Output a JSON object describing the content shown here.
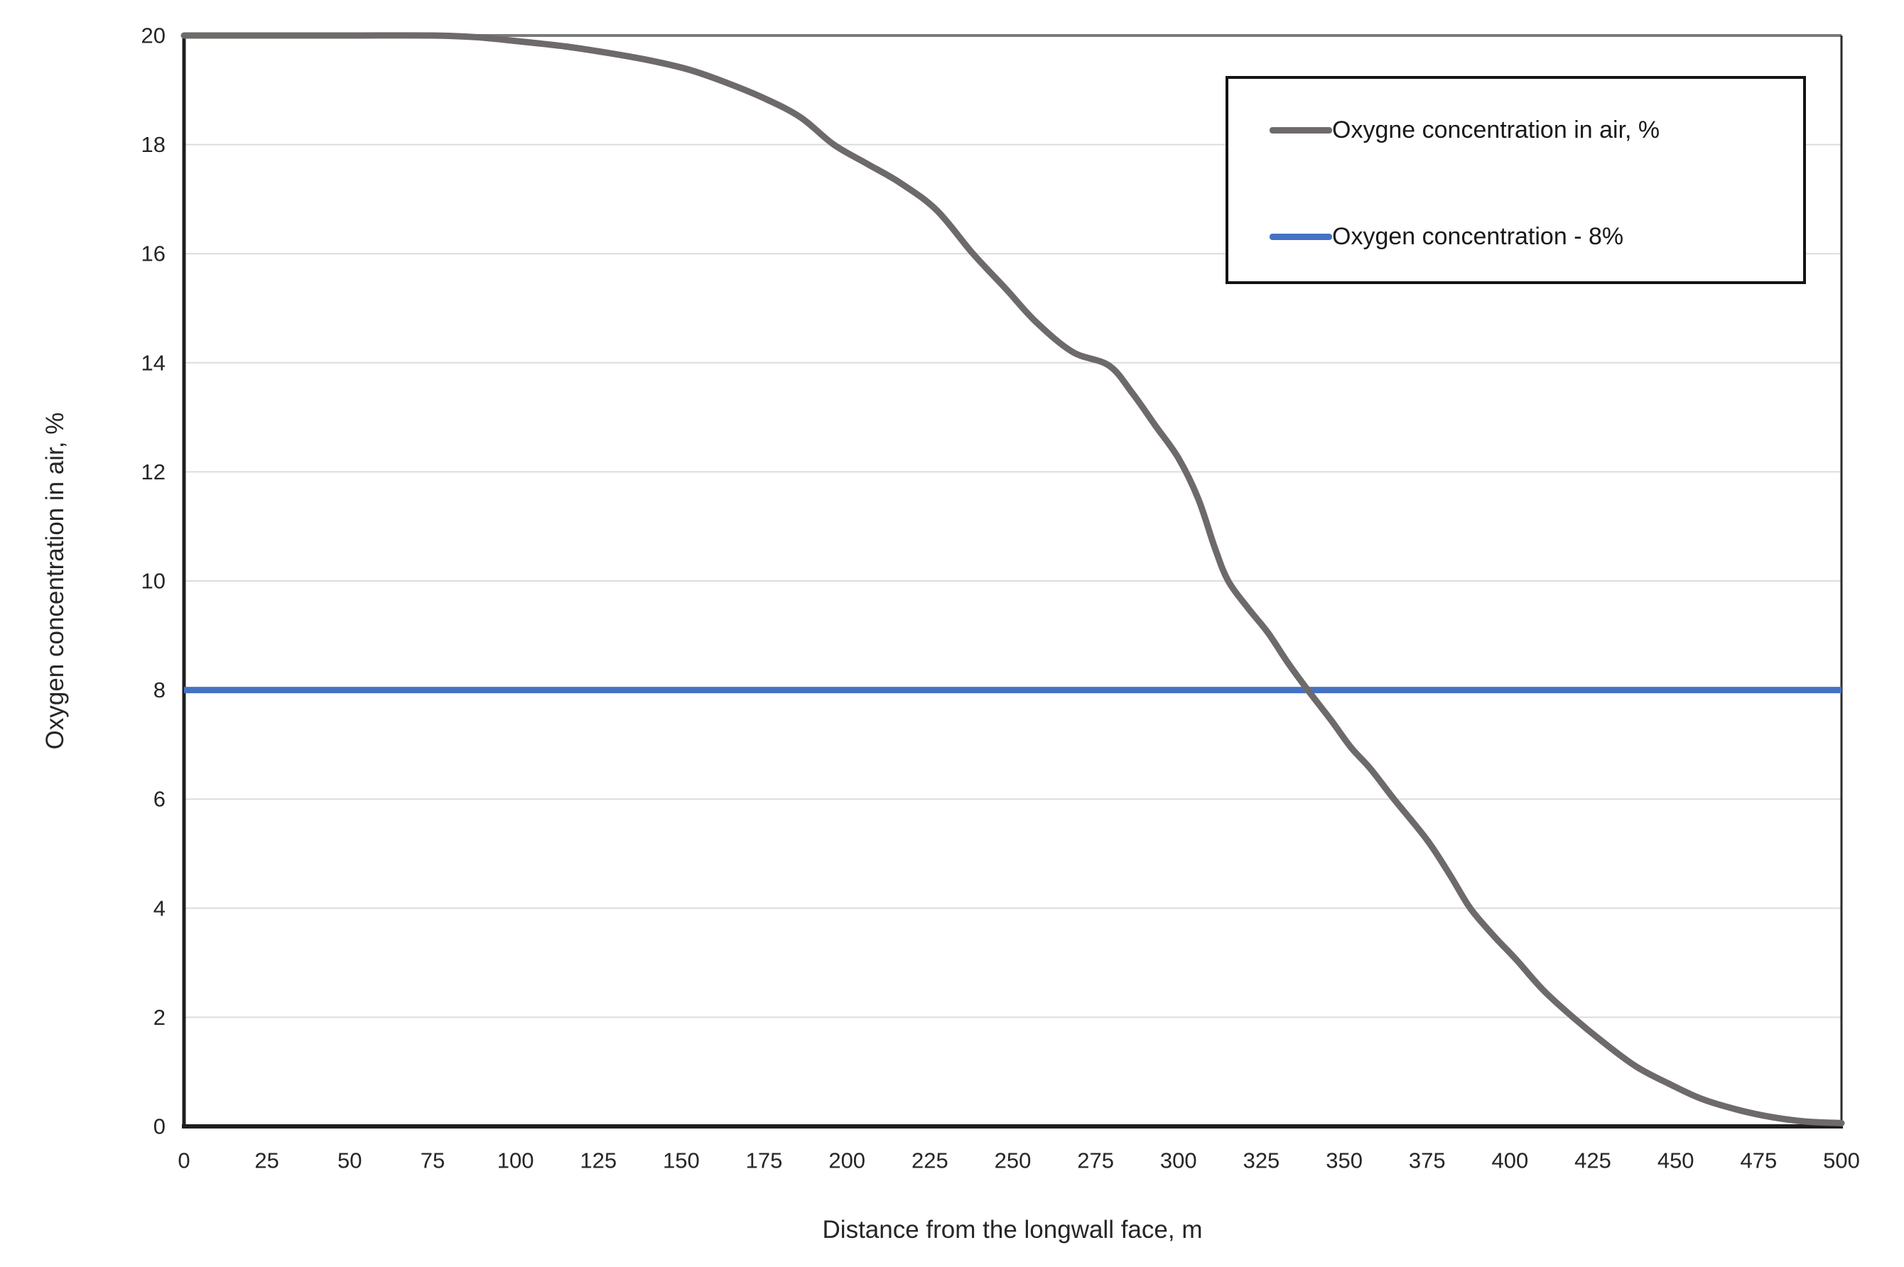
{
  "chart_data": {
    "type": "line",
    "title": "",
    "xlabel": "Distance from the longwall face, m",
    "ylabel": "Oxygen concentration in air, %",
    "xlim": [
      0,
      500
    ],
    "ylim": [
      0,
      20
    ],
    "x_ticks": [
      0,
      25,
      50,
      75,
      100,
      125,
      150,
      175,
      200,
      225,
      250,
      275,
      300,
      325,
      350,
      375,
      400,
      425,
      450,
      475,
      500
    ],
    "y_ticks": [
      0,
      2,
      4,
      6,
      8,
      10,
      12,
      14,
      16,
      18,
      20
    ],
    "grid": "horizontal gridlines every 2 units, light gray",
    "legend_position": "top-right inside plot, black-bordered white box",
    "series": [
      {
        "name": "Oxygne concentration in air, %",
        "color": "#6e6a6a",
        "points": [
          [
            0,
            20.0
          ],
          [
            25,
            20.0
          ],
          [
            50,
            20.0
          ],
          [
            75,
            20.0
          ],
          [
            88,
            19.97
          ],
          [
            100,
            19.9
          ],
          [
            115,
            19.8
          ],
          [
            128,
            19.68
          ],
          [
            140,
            19.55
          ],
          [
            152,
            19.38
          ],
          [
            163,
            19.15
          ],
          [
            175,
            18.85
          ],
          [
            186,
            18.5
          ],
          [
            196,
            18.0
          ],
          [
            206,
            17.65
          ],
          [
            216,
            17.3
          ],
          [
            227,
            16.8
          ],
          [
            238,
            16.0
          ],
          [
            248,
            15.35
          ],
          [
            257,
            14.75
          ],
          [
            268,
            14.2
          ],
          [
            279,
            13.95
          ],
          [
            286,
            13.45
          ],
          [
            293,
            12.85
          ],
          [
            300,
            12.25
          ],
          [
            306,
            11.5
          ],
          [
            311,
            10.6
          ],
          [
            315,
            10.0
          ],
          [
            321,
            9.5
          ],
          [
            327,
            9.05
          ],
          [
            333,
            8.5
          ],
          [
            339,
            8.0
          ],
          [
            346,
            7.45
          ],
          [
            352,
            6.95
          ],
          [
            358,
            6.55
          ],
          [
            365,
            6.0
          ],
          [
            375,
            5.25
          ],
          [
            382,
            4.6
          ],
          [
            388,
            4.0
          ],
          [
            395,
            3.5
          ],
          [
            402,
            3.05
          ],
          [
            410,
            2.5
          ],
          [
            419,
            2.0
          ],
          [
            428,
            1.55
          ],
          [
            438,
            1.1
          ],
          [
            448,
            0.78
          ],
          [
            458,
            0.5
          ],
          [
            469,
            0.3
          ],
          [
            479,
            0.17
          ],
          [
            489,
            0.09
          ],
          [
            500,
            0.06
          ]
        ]
      },
      {
        "name": "Oxygen concentration - 8%",
        "color": "#4472c4",
        "points": [
          [
            0,
            8.0
          ],
          [
            500,
            8.0
          ]
        ]
      }
    ]
  },
  "colors": {
    "curve_gray": "#6e6a6a",
    "threshold_blue": "#4472c4",
    "gridline": "#dcdcdc",
    "axis_line": "#1f1f1f",
    "plot_border_top": "#7a7a7a",
    "plot_border_right": "#2a2a2a",
    "tick_text": "#262626",
    "legend_border": "#141414",
    "background": "#ffffff"
  }
}
